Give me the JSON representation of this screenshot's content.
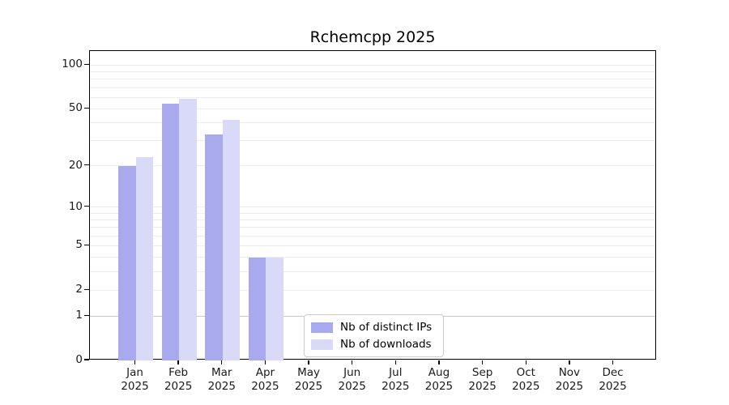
{
  "chart_data": {
    "type": "bar",
    "title": "Rchemcpp 2025",
    "categories": [
      "Jan",
      "Feb",
      "Mar",
      "Apr",
      "May",
      "Jun",
      "Jul",
      "Aug",
      "Sep",
      "Oct",
      "Nov",
      "Dec"
    ],
    "x_year": "2025",
    "series": [
      {
        "name": "Nb of distinct IPs",
        "color": "#a9a9ee",
        "values": [
          20,
          54,
          33,
          4,
          0,
          0,
          0,
          0,
          0,
          0,
          0,
          0
        ]
      },
      {
        "name": "Nb of downloads",
        "color": "#d9d9f8",
        "values": [
          23,
          59,
          42,
          4,
          0,
          0,
          0,
          0,
          0,
          0,
          0,
          0
        ]
      }
    ],
    "yscale": "log1p",
    "yticks": [
      0,
      1,
      2,
      5,
      10,
      20,
      50,
      100
    ],
    "ylim": [
      0,
      125
    ],
    "xlabel": "",
    "ylabel": "",
    "grid": true,
    "gridline_values": [
      1,
      2,
      3,
      4,
      5,
      6,
      7,
      8,
      9,
      10,
      20,
      30,
      40,
      50,
      60,
      70,
      80,
      90,
      100
    ],
    "emphasized_gridline": 1,
    "legend_position": "bottom-center",
    "colors": {
      "axis": "#000000",
      "grid_minor": "#ededed",
      "grid_emphasized": "#c8c8c8",
      "legend_border": "#cccccc",
      "text": "#1a1a1a"
    }
  }
}
